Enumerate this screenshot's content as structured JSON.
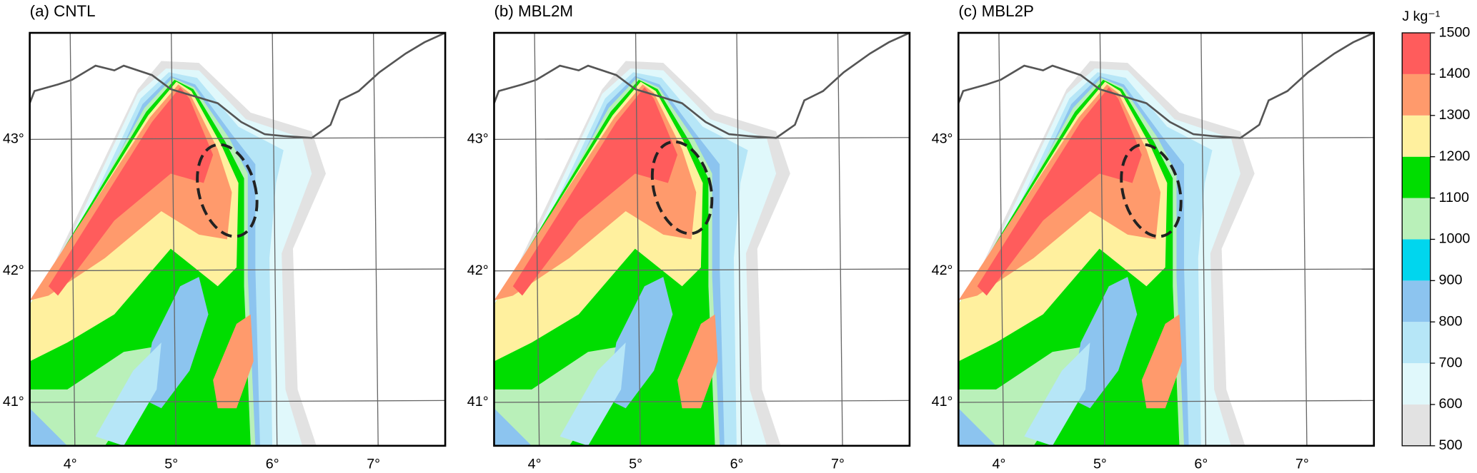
{
  "panels": [
    {
      "title": "(a) CNTL"
    },
    {
      "title": "(b) MBL2M"
    },
    {
      "title": "(c) MBL2P"
    }
  ],
  "lon_ticks": [
    {
      "value": 4,
      "label": "4°"
    },
    {
      "value": 5,
      "label": "5°"
    },
    {
      "value": 6,
      "label": "6°"
    },
    {
      "value": 7,
      "label": "7°"
    }
  ],
  "lat_ticks": [
    {
      "value": 41,
      "label": "41°"
    },
    {
      "value": 42,
      "label": "42°"
    },
    {
      "value": 43,
      "label": "43°"
    }
  ],
  "xlim": [
    3.6,
    7.71
  ],
  "ylim": [
    40.67,
    43.81
  ],
  "colorbar": {
    "unit": "J kg⁻¹",
    "levels": [
      500,
      600,
      700,
      800,
      900,
      1000,
      1100,
      1200,
      1300,
      1400,
      1500
    ],
    "colors": [
      "#e2e2e2",
      "#e0f8fb",
      "#b6e6f7",
      "#8cc4ef",
      "#00d6ee",
      "#b9f0b9",
      "#00dd00",
      "#fff09e",
      "#ff9a6c",
      "#ff5c5c"
    ]
  }
}
